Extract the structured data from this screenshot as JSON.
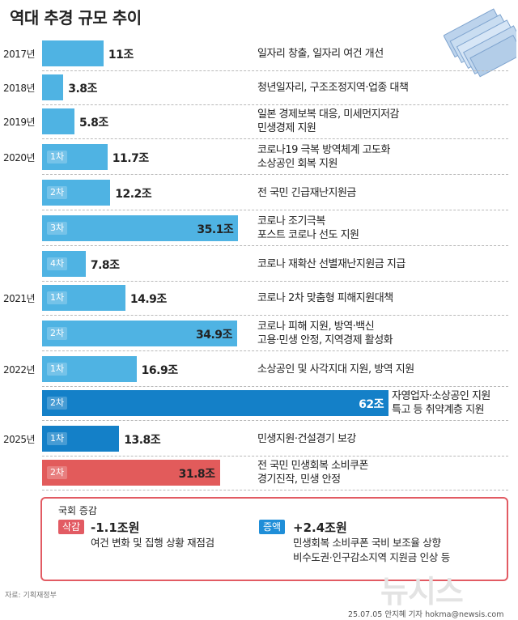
{
  "title": "역대 추경 규모 추이",
  "chart_data": {
    "type": "bar",
    "orientation": "horizontal",
    "unit": "조",
    "value_scale_max": 62,
    "items": [
      {
        "year": "2017년",
        "round": "",
        "value": 11,
        "label": "11조",
        "desc": [
          "일자리 창출, 일자리 여건 개선"
        ],
        "color": "#4fb3e3"
      },
      {
        "year": "2018년",
        "round": "",
        "value": 3.8,
        "label": "3.8조",
        "desc": [
          "청년일자리, 구조조정지역·업종 대책"
        ],
        "color": "#4fb3e3"
      },
      {
        "year": "2019년",
        "round": "",
        "value": 5.8,
        "label": "5.8조",
        "desc": [
          "일본 경제보복 대응, 미세먼지저감",
          "민생경제 지원"
        ],
        "color": "#4fb3e3"
      },
      {
        "year": "2020년",
        "round": "1차",
        "value": 11.7,
        "label": "11.7조",
        "desc": [
          "코로나19 극복 방역체계 고도화",
          "소상공인 회복 지원"
        ],
        "color": "#4fb3e3"
      },
      {
        "year": "",
        "round": "2차",
        "value": 12.2,
        "label": "12.2조",
        "desc": [
          "전 국민 긴급재난지원금"
        ],
        "color": "#4fb3e3"
      },
      {
        "year": "",
        "round": "3차",
        "value": 35.1,
        "label": "35.1조",
        "desc": [
          "코로나 조기극복",
          "포스트 코로나 선도 지원"
        ],
        "color": "#4fb3e3"
      },
      {
        "year": "",
        "round": "4차",
        "value": 7.8,
        "label": "7.8조",
        "desc": [
          "코로나 재확산 선별재난지원금 지급"
        ],
        "color": "#4fb3e3"
      },
      {
        "year": "2021년",
        "round": "1차",
        "value": 14.9,
        "label": "14.9조",
        "desc": [
          "코로나 2차 맞춤형 피해지원대책"
        ],
        "color": "#4fb3e3"
      },
      {
        "year": "",
        "round": "2차",
        "value": 34.9,
        "label": "34.9조",
        "desc": [
          "코로나 피해 지원, 방역·백신",
          "고용·민생 안정, 지역경제 활성화"
        ],
        "color": "#4fb3e3"
      },
      {
        "year": "2022년",
        "round": "1차",
        "value": 16.9,
        "label": "16.9조",
        "desc": [
          "소상공인 및 사각지대 지원,  방역 지원"
        ],
        "color": "#4fb3e3"
      },
      {
        "year": "",
        "round": "2차",
        "value": 62,
        "label": "62조",
        "desc": [
          "자영업자·소상공인 지원",
          "특고 등 취약계층 지원"
        ],
        "color": "#1480c8"
      },
      {
        "year": "2025년",
        "round": "1차",
        "value": 13.8,
        "label": "13.8조",
        "desc": [
          "민생지원·건설경기 보강"
        ],
        "color": "#1480c8"
      },
      {
        "year": "",
        "round": "2차",
        "value": 31.8,
        "label": "31.8조",
        "desc": [
          "전 국민 민생회복 소비쿠폰",
          "경기진작, 민생 안정"
        ],
        "color": "#e25b5b"
      }
    ]
  },
  "assembly": {
    "title": "국회 증감",
    "cut": {
      "tag": "삭감",
      "amount": "-1.1조원",
      "reason": [
        "여건 변화 및 집행 상황 재점검"
      ],
      "color": "#e25b63"
    },
    "add": {
      "tag": "증액",
      "amount": "+2.4조원",
      "reason": [
        "민생회복 소비쿠폰 국비 보조율 상향",
        "비수도권·인구감소지역 지원금 인상 등"
      ],
      "color": "#1f8ed8"
    }
  },
  "source": "자료: 기획재정부",
  "credit": "25.07.05 안지혜 기자 hokma@newsis.com",
  "logo": "뉴시스"
}
